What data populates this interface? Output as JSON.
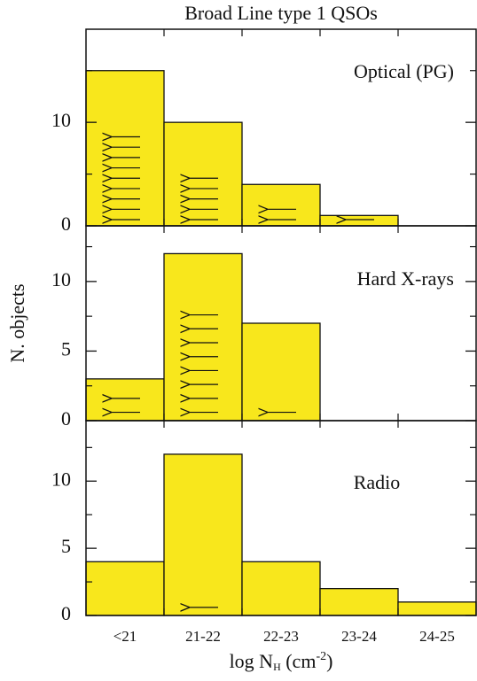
{
  "chart_data": [
    {
      "type": "bar",
      "title": "Broad Line type 1 QSOs",
      "label": "Optical (PG)",
      "categories": [
        "<21",
        "21-22",
        "22-23",
        "23-24",
        "24-25"
      ],
      "values": [
        15,
        10,
        4,
        1,
        0
      ],
      "upper_limits": [
        9,
        5,
        2,
        1,
        0
      ],
      "color": "#f8e71c",
      "ylim": [
        0,
        19
      ],
      "yticks": [
        0,
        10
      ],
      "minor_yticks": [
        5,
        15
      ]
    },
    {
      "type": "bar",
      "label": "Hard X-rays",
      "y_label": "N. objects",
      "categories": [
        "<21",
        "21-22",
        "22-23",
        "23-24",
        "24-25"
      ],
      "values": [
        3,
        12,
        7,
        0,
        0
      ],
      "upper_limits": [
        2,
        8,
        1,
        0,
        0
      ],
      "color": "#f8e71c",
      "ylim": [
        0,
        14
      ],
      "yticks": [
        0,
        5,
        10
      ],
      "minor_yticks": [
        2.5,
        7.5,
        12.5
      ]
    },
    {
      "type": "bar",
      "label": "Radio",
      "categories": [
        "<21",
        "21-22",
        "22-23",
        "23-24",
        "24-25"
      ],
      "values": [
        4,
        12,
        4,
        2,
        1
      ],
      "upper_limits": [
        0,
        1,
        0,
        0,
        0
      ],
      "color": "#f8e71c",
      "ylim": [
        0,
        14.5
      ],
      "yticks": [
        0,
        5,
        10
      ],
      "minor_yticks": [
        2.5,
        7.5,
        12.5
      ],
      "x_label": [
        "log N",
        "H",
        " (cm",
        "-2",
        ")"
      ]
    }
  ]
}
